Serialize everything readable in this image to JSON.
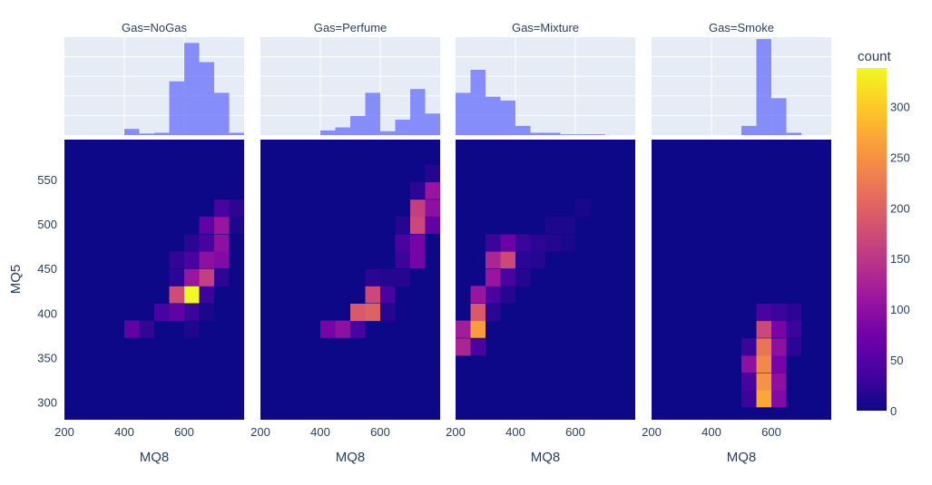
{
  "chart_data": {
    "type": "heatmap",
    "facet_labels": [
      "Gas=NoGas",
      "Gas=Perfume",
      "Gas=Mixture",
      "Gas=Smoke"
    ],
    "xlabel": "MQ8",
    "ylabel": "MQ5",
    "x_range": [
      200,
      800
    ],
    "y_range": [
      280,
      595
    ],
    "x_ticks": [
      200,
      400,
      600
    ],
    "x_tick_labels": [
      "200",
      "400",
      "600"
    ],
    "y_ticks": [
      300,
      350,
      400,
      450,
      500,
      550
    ],
    "y_tick_labels": [
      "300",
      "350",
      "400",
      "450",
      "500",
      "550"
    ],
    "x_bin_size": 50,
    "y_bin_size": 19.5,
    "marginal": "histogram",
    "colorbar": {
      "title": "count",
      "min": 0,
      "max": 338,
      "ticks": [
        0,
        50,
        100,
        150,
        200,
        250,
        300
      ],
      "tick_labels": [
        "0",
        "50",
        "100",
        "150",
        "200",
        "250",
        "300"
      ]
    },
    "colorscale": [
      "#0d0887",
      "#46039f",
      "#7201a8",
      "#9c179e",
      "#bd3786",
      "#d8576b",
      "#ed7953",
      "#fb9f3a",
      "#fdca26",
      "#f0f921"
    ],
    "colors": {
      "plot_bg": "#0d0887",
      "hist_bg": "#e5ecf6",
      "hist_bar": "#636efa",
      "text": "#2a3f5f",
      "grid": "#ffffff"
    },
    "facets": [
      {
        "gas": "NoGas",
        "histogram": [
          {
            "x": 400,
            "count": 8
          },
          {
            "x": 450,
            "count": 2
          },
          {
            "x": 500,
            "count": 3
          },
          {
            "x": 550,
            "count": 70
          },
          {
            "x": 600,
            "count": 120
          },
          {
            "x": 650,
            "count": 95
          },
          {
            "x": 700,
            "count": 55
          },
          {
            "x": 750,
            "count": 3
          }
        ],
        "cells": [
          {
            "x": 400,
            "y": 372,
            "count": 60
          },
          {
            "x": 450,
            "y": 372,
            "count": 25
          },
          {
            "x": 500,
            "y": 391,
            "count": 40
          },
          {
            "x": 550,
            "y": 391,
            "count": 60
          },
          {
            "x": 600,
            "y": 391,
            "count": 30
          },
          {
            "x": 550,
            "y": 411,
            "count": 175
          },
          {
            "x": 600,
            "y": 411,
            "count": 338
          },
          {
            "x": 650,
            "y": 411,
            "count": 30
          },
          {
            "x": 550,
            "y": 430,
            "count": 20
          },
          {
            "x": 600,
            "y": 430,
            "count": 110
          },
          {
            "x": 650,
            "y": 430,
            "count": 160
          },
          {
            "x": 700,
            "y": 430,
            "count": 20
          },
          {
            "x": 550,
            "y": 450,
            "count": 25
          },
          {
            "x": 600,
            "y": 450,
            "count": 40
          },
          {
            "x": 650,
            "y": 450,
            "count": 100
          },
          {
            "x": 700,
            "y": 450,
            "count": 90
          },
          {
            "x": 600,
            "y": 469,
            "count": 20
          },
          {
            "x": 650,
            "y": 469,
            "count": 40
          },
          {
            "x": 700,
            "y": 469,
            "count": 100
          },
          {
            "x": 650,
            "y": 489,
            "count": 60
          },
          {
            "x": 700,
            "y": 489,
            "count": 110
          },
          {
            "x": 700,
            "y": 508,
            "count": 40
          },
          {
            "x": 750,
            "y": 508,
            "count": 20
          },
          {
            "x": 750,
            "y": 489,
            "count": 10
          },
          {
            "x": 600,
            "y": 372,
            "count": 10
          },
          {
            "x": 650,
            "y": 391,
            "count": 8
          }
        ]
      },
      {
        "gas": "Perfume",
        "histogram": [
          {
            "x": 400,
            "count": 6
          },
          {
            "x": 450,
            "count": 10
          },
          {
            "x": 500,
            "count": 25
          },
          {
            "x": 550,
            "count": 55
          },
          {
            "x": 600,
            "count": 5
          },
          {
            "x": 650,
            "count": 20
          },
          {
            "x": 700,
            "count": 60
          },
          {
            "x": 750,
            "count": 28
          }
        ],
        "cells": [
          {
            "x": 400,
            "y": 372,
            "count": 80
          },
          {
            "x": 450,
            "y": 372,
            "count": 100
          },
          {
            "x": 500,
            "y": 372,
            "count": 40
          },
          {
            "x": 500,
            "y": 391,
            "count": 190
          },
          {
            "x": 550,
            "y": 391,
            "count": 200
          },
          {
            "x": 550,
            "y": 411,
            "count": 170
          },
          {
            "x": 600,
            "y": 411,
            "count": 40
          },
          {
            "x": 550,
            "y": 430,
            "count": 20
          },
          {
            "x": 600,
            "y": 430,
            "count": 15
          },
          {
            "x": 650,
            "y": 430,
            "count": 15
          },
          {
            "x": 650,
            "y": 450,
            "count": 30
          },
          {
            "x": 700,
            "y": 450,
            "count": 80
          },
          {
            "x": 650,
            "y": 469,
            "count": 40
          },
          {
            "x": 700,
            "y": 469,
            "count": 80
          },
          {
            "x": 700,
            "y": 489,
            "count": 170
          },
          {
            "x": 700,
            "y": 508,
            "count": 160
          },
          {
            "x": 750,
            "y": 508,
            "count": 100
          },
          {
            "x": 750,
            "y": 528,
            "count": 110
          },
          {
            "x": 750,
            "y": 489,
            "count": 60
          },
          {
            "x": 700,
            "y": 528,
            "count": 20
          },
          {
            "x": 750,
            "y": 547,
            "count": 15
          },
          {
            "x": 600,
            "y": 391,
            "count": 15
          },
          {
            "x": 650,
            "y": 489,
            "count": 15
          }
        ]
      },
      {
        "gas": "Mixture",
        "histogram": [
          {
            "x": 200,
            "count": 55
          },
          {
            "x": 250,
            "count": 85
          },
          {
            "x": 300,
            "count": 50
          },
          {
            "x": 350,
            "count": 45
          },
          {
            "x": 400,
            "count": 12
          },
          {
            "x": 450,
            "count": 3
          },
          {
            "x": 500,
            "count": 3
          },
          {
            "x": 550,
            "count": 1
          },
          {
            "x": 600,
            "count": 1
          },
          {
            "x": 650,
            "count": 1
          }
        ],
        "cells": [
          {
            "x": 200,
            "y": 352,
            "count": 130
          },
          {
            "x": 200,
            "y": 372,
            "count": 120
          },
          {
            "x": 250,
            "y": 372,
            "count": 260
          },
          {
            "x": 250,
            "y": 352,
            "count": 40
          },
          {
            "x": 250,
            "y": 391,
            "count": 190
          },
          {
            "x": 250,
            "y": 411,
            "count": 110
          },
          {
            "x": 300,
            "y": 411,
            "count": 40
          },
          {
            "x": 300,
            "y": 430,
            "count": 110
          },
          {
            "x": 350,
            "y": 430,
            "count": 40
          },
          {
            "x": 300,
            "y": 450,
            "count": 130
          },
          {
            "x": 350,
            "y": 450,
            "count": 170
          },
          {
            "x": 300,
            "y": 469,
            "count": 30
          },
          {
            "x": 350,
            "y": 469,
            "count": 70
          },
          {
            "x": 400,
            "y": 469,
            "count": 30
          },
          {
            "x": 400,
            "y": 450,
            "count": 20
          },
          {
            "x": 450,
            "y": 469,
            "count": 20
          },
          {
            "x": 450,
            "y": 450,
            "count": 15
          },
          {
            "x": 500,
            "y": 469,
            "count": 15
          },
          {
            "x": 500,
            "y": 489,
            "count": 10
          },
          {
            "x": 550,
            "y": 489,
            "count": 10
          },
          {
            "x": 600,
            "y": 508,
            "count": 8
          },
          {
            "x": 400,
            "y": 430,
            "count": 15
          },
          {
            "x": 300,
            "y": 391,
            "count": 20
          },
          {
            "x": 350,
            "y": 411,
            "count": 15
          },
          {
            "x": 550,
            "y": 469,
            "count": 8
          }
        ]
      },
      {
        "gas": "Smoke",
        "histogram": [
          {
            "x": 500,
            "count": 12
          },
          {
            "x": 550,
            "count": 125
          },
          {
            "x": 600,
            "count": 48
          },
          {
            "x": 650,
            "count": 3
          }
        ],
        "cells": [
          {
            "x": 500,
            "y": 294,
            "count": 30
          },
          {
            "x": 550,
            "y": 294,
            "count": 270
          },
          {
            "x": 600,
            "y": 294,
            "count": 90
          },
          {
            "x": 500,
            "y": 313,
            "count": 40
          },
          {
            "x": 550,
            "y": 313,
            "count": 250
          },
          {
            "x": 600,
            "y": 313,
            "count": 100
          },
          {
            "x": 500,
            "y": 333,
            "count": 100
          },
          {
            "x": 550,
            "y": 333,
            "count": 240
          },
          {
            "x": 600,
            "y": 333,
            "count": 80
          },
          {
            "x": 500,
            "y": 352,
            "count": 30
          },
          {
            "x": 550,
            "y": 352,
            "count": 220
          },
          {
            "x": 600,
            "y": 352,
            "count": 100
          },
          {
            "x": 650,
            "y": 352,
            "count": 20
          },
          {
            "x": 550,
            "y": 372,
            "count": 170
          },
          {
            "x": 600,
            "y": 372,
            "count": 80
          },
          {
            "x": 650,
            "y": 372,
            "count": 30
          },
          {
            "x": 550,
            "y": 391,
            "count": 40
          },
          {
            "x": 600,
            "y": 391,
            "count": 30
          },
          {
            "x": 650,
            "y": 391,
            "count": 20
          }
        ]
      }
    ]
  }
}
